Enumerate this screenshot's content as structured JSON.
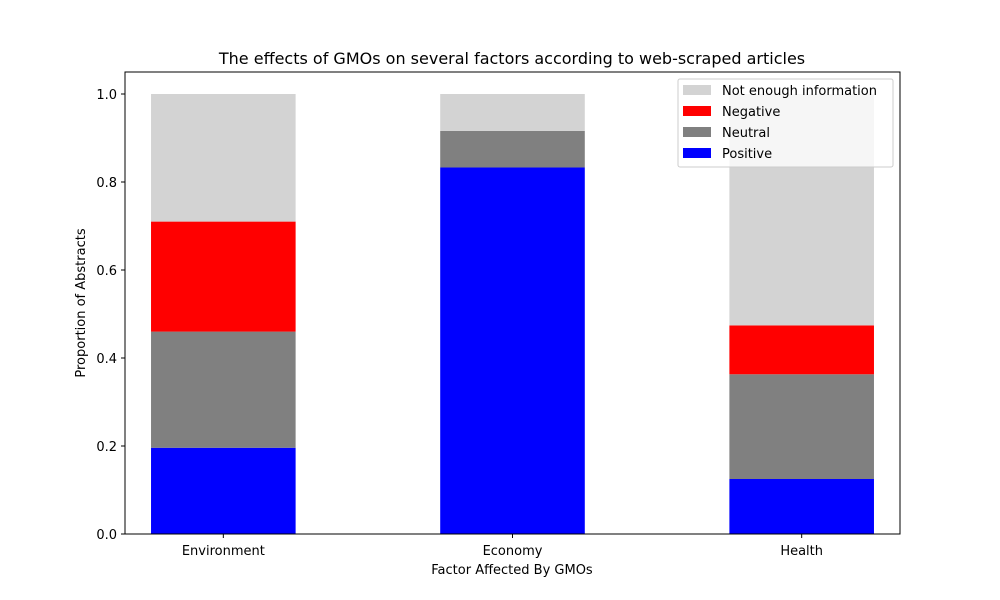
{
  "chart_data": {
    "type": "bar",
    "stacked": true,
    "title": "The effects of GMOs on several factors according to web-scraped articles",
    "xlabel": "Factor Affected By GMOs",
    "ylabel": "Proportion of Abstracts",
    "categories": [
      "Environment",
      "Economy",
      "Health"
    ],
    "ylim": [
      0,
      1.05
    ],
    "yticks": [
      "0.0",
      "0.2",
      "0.4",
      "0.6",
      "0.8",
      "1.0"
    ],
    "ytick_values": [
      0,
      0.2,
      0.4,
      0.6,
      0.8,
      1.0
    ],
    "grid": false,
    "legend_position": "top-right",
    "series": [
      {
        "name": "Positive",
        "color": "#0000ff",
        "values": [
          0.196,
          0.833,
          0.125
        ]
      },
      {
        "name": "Neutral",
        "color": "#808080",
        "values": [
          0.264,
          0.083,
          0.238
        ]
      },
      {
        "name": "Negative",
        "color": "#ff0000",
        "values": [
          0.25,
          0.0,
          0.111
        ]
      },
      {
        "name": "Not enough information",
        "color": "#d3d3d3",
        "values": [
          0.29,
          0.084,
          0.526
        ]
      }
    ]
  }
}
